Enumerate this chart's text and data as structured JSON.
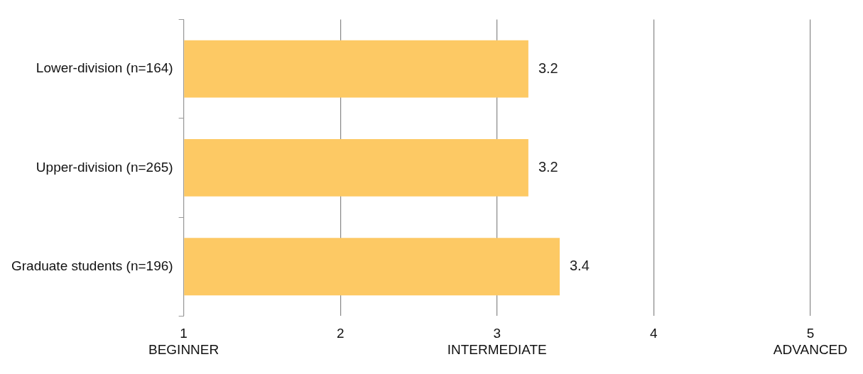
{
  "chart_data": {
    "type": "bar",
    "orientation": "horizontal",
    "categories": [
      "Lower-division (n=164)",
      "Upper-division (n=265)",
      "Graduate students (n=196)"
    ],
    "values": [
      3.2,
      3.2,
      3.4
    ],
    "color": "#fdc964",
    "xlim": [
      1,
      5
    ],
    "xticks": [
      {
        "value": 1,
        "label": "1\nBEGINNER"
      },
      2,
      {
        "value": 3,
        "label": "3\nINTERMEDIATE"
      },
      4,
      {
        "value": 5,
        "label": "5\nADVANCED"
      }
    ],
    "grid": "x",
    "data_labels": true
  }
}
